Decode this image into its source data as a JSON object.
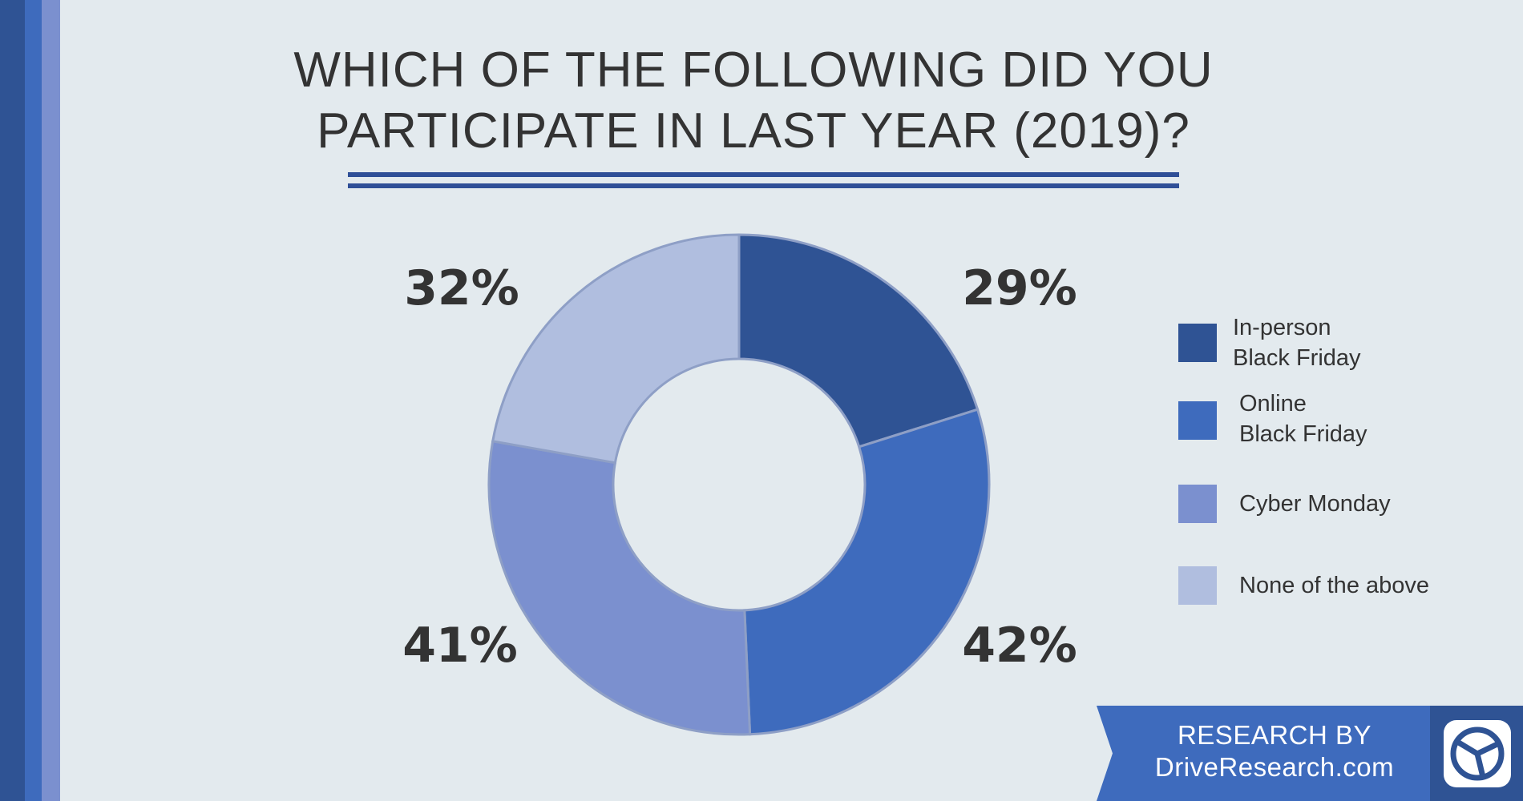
{
  "title_lines": [
    "WHICH OF THE FOLLOWING DID YOU",
    "PARTICIPATE IN LAST YEAR (2019)?"
  ],
  "colors": {
    "background": "#e3eaee",
    "text": "#333333",
    "rule": "#2f4f97",
    "stripes": [
      "#2f5394",
      "#3e6bbd",
      "#7b90cf"
    ]
  },
  "chart_data": {
    "type": "pie",
    "donut": true,
    "title": "WHICH OF THE FOLLOWING DID YOU PARTICIPATE IN LAST YEAR (2019)?",
    "categories": [
      "In-person Black Friday",
      "Online Black Friday",
      "Cyber Monday",
      "None of the above"
    ],
    "values": [
      29,
      42,
      41,
      32
    ],
    "value_labels": [
      "29%",
      "42%",
      "41%",
      "32%"
    ],
    "colors": [
      "#2f5394",
      "#3e6bbd",
      "#7b90cf",
      "#b0bedf"
    ],
    "legend": "right"
  },
  "legend": [
    {
      "label": "In-person\nBlack Friday",
      "color": "#2f5394"
    },
    {
      "label": "Online\nBlack Friday",
      "color": "#3e6bbd"
    },
    {
      "label": "Cyber Monday",
      "color": "#7b90cf"
    },
    {
      "label": "None of the above",
      "color": "#b0bedf"
    }
  ],
  "brand": {
    "line1": "RESEARCH BY",
    "line2": "DriveResearch.com",
    "logo_icon": "steering-wheel-icon",
    "ribbon_color": "#3e6bbd",
    "logo_bg_color": "#2f5394"
  }
}
